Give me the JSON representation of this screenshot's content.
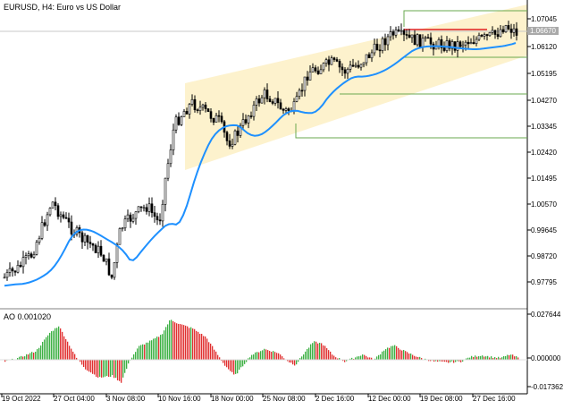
{
  "window": {
    "symbol_title": "EURUSD, H4:  Euro vs US Dollar",
    "indicator_title": "AO 0.001020"
  },
  "price_axis": {
    "labels": [
      "1.07045",
      "1.06120",
      "1.05195",
      "1.04270",
      "1.03345",
      "1.02420",
      "1.01495",
      "1.00570",
      "0.99645",
      "0.98720",
      "0.97795"
    ],
    "current_price": "1.06670"
  },
  "ao_axis": {
    "labels": [
      "0.027644",
      "0.000000",
      "-0.017362"
    ]
  },
  "time_axis": {
    "labels": [
      "19 Oct 2022",
      "27 Oct 04:00",
      "3 Nov 08:00",
      "10 Nov 16:00",
      "18 Nov 00:00",
      "25 Nov 08:00",
      "2 Dec 16:00",
      "12 Dec 00:00",
      "19 Dec 08:00",
      "27 Dec 16:00"
    ]
  },
  "colors": {
    "candle": "#000000",
    "ma_line": "#1e90ff",
    "channel_fill": "#fdf0c4",
    "horizontal_levels": "#6aa84f",
    "resistance_line": "#e02020",
    "ao_up": "#3cb043",
    "ao_down": "#e03030",
    "grid": "#c0c0c0"
  }
}
